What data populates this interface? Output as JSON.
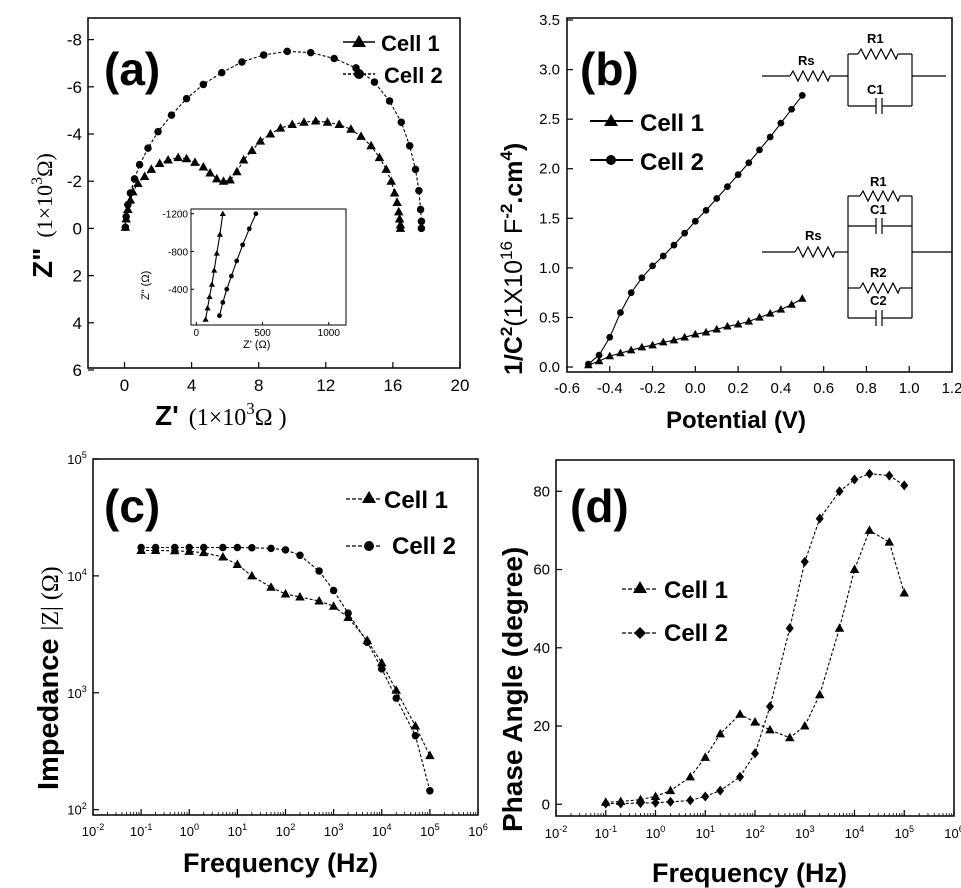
{
  "chart_data": [
    {
      "id": "a",
      "type": "scatter",
      "panel_label": "(a)",
      "xlabel_main": "Z'",
      "xlabel_unit": "(1×10",
      "xlabel_exp": "3",
      "xlabel_end": "Ω )",
      "ylabel_main": "Z\"",
      "ylabel_unit": "(1×10",
      "ylabel_exp": "3",
      "ylabel_end": "Ω)",
      "xlim": [
        0,
        20
      ],
      "ylim": [
        -9,
        6
      ],
      "y_inverted": true,
      "xticks": [
        0,
        4,
        8,
        12,
        16,
        20
      ],
      "xtick_labels": [
        "0",
        "4",
        "8",
        "12",
        "16",
        "20"
      ],
      "yticks": [
        -8,
        -6,
        -4,
        -2,
        0,
        2,
        4,
        6
      ],
      "ytick_labels": [
        "-8",
        "-6",
        "-4",
        "-2",
        "0",
        "2",
        "4",
        "6"
      ],
      "legend_position": "top-right",
      "series": [
        {
          "name": "Cell 1",
          "marker": "triangle",
          "x": [
            0.05,
            0.1,
            0.2,
            0.35,
            0.5,
            0.8,
            1.2,
            1.6,
            2.1,
            2.6,
            3.2,
            3.7,
            4.2,
            4.7,
            5.1,
            5.5,
            5.9,
            6.3,
            6.7,
            7.1,
            7.6,
            8.1,
            8.7,
            9.3,
            10,
            10.7,
            11.4,
            12.1,
            12.8,
            13.5,
            14.1,
            14.7,
            15.2,
            15.6,
            15.9,
            16.1,
            16.25,
            16.35,
            16.4,
            16.45,
            16.45
          ],
          "y": [
            -0.05,
            -0.4,
            -0.8,
            -1.2,
            -1.55,
            -1.9,
            -2.2,
            -2.5,
            -2.75,
            -2.9,
            -3.0,
            -2.95,
            -2.8,
            -2.6,
            -2.35,
            -2.1,
            -2.0,
            -2.05,
            -2.4,
            -2.9,
            -3.3,
            -3.7,
            -4.0,
            -4.25,
            -4.4,
            -4.5,
            -4.55,
            -4.5,
            -4.4,
            -4.2,
            -3.9,
            -3.5,
            -3.0,
            -2.5,
            -2.0,
            -1.5,
            -1.1,
            -0.7,
            -0.4,
            -0.15,
            0.0
          ]
        },
        {
          "name": "Cell 2",
          "marker": "circle",
          "x": [
            0.05,
            0.1,
            0.2,
            0.35,
            0.6,
            0.9,
            1.4,
            2.0,
            2.8,
            3.7,
            4.7,
            5.8,
            7.0,
            8.3,
            9.7,
            11.1,
            12.5,
            13.8,
            14.9,
            15.8,
            16.5,
            17.0,
            17.35,
            17.55,
            17.65,
            17.7,
            17.7
          ],
          "y": [
            -0.05,
            -0.5,
            -1.0,
            -1.5,
            -2.1,
            -2.7,
            -3.4,
            -4.1,
            -4.8,
            -5.5,
            -6.1,
            -6.6,
            -7.05,
            -7.35,
            -7.5,
            -7.45,
            -7.2,
            -6.8,
            -6.2,
            -5.4,
            -4.5,
            -3.5,
            -2.5,
            -1.6,
            -0.8,
            -0.3,
            0.0
          ]
        }
      ],
      "inset": {
        "xlabel": "Z' (Ω)",
        "ylabel": "Z\" (Ω)",
        "xlim": [
          0,
          1200
        ],
        "ylim": [
          -1200,
          0
        ],
        "xticks": [
          0,
          500,
          1000
        ],
        "xtick_labels": [
          "0",
          "500",
          "1000"
        ],
        "yticks": [
          -1200,
          -800,
          -400
        ],
        "ytick_labels": [
          "-1200",
          "-800",
          "-400"
        ],
        "series": [
          {
            "name": "Cell 1",
            "marker": "triangle",
            "x": [
              70,
              85,
              100,
              118,
              135,
              155,
              178,
              200
            ],
            "y": [
              -80,
              -200,
              -320,
              -450,
              -600,
              -780,
              -980,
              -1200
            ]
          },
          {
            "name": "Cell 2",
            "marker": "circle",
            "x": [
              175,
              200,
              230,
              265,
              305,
              350,
              400,
              450
            ],
            "y": [
              -120,
              -260,
              -400,
              -540,
              -700,
              -870,
              -1040,
              -1200
            ]
          }
        ]
      }
    },
    {
      "id": "b",
      "type": "line",
      "panel_label": "(b)",
      "xlabel": "Potential (V)",
      "ylabel_main": "1/C",
      "ylabel_exp1": "2",
      "ylabel_mid": "(1X10",
      "ylabel_exp2": "16",
      "ylabel_mid2": " F",
      "ylabel_exp3": "-2",
      "ylabel_mid3": ".cm",
      "ylabel_exp4": "4",
      "ylabel_end": ")",
      "xlim": [
        -0.6,
        1.2
      ],
      "ylim": [
        -0.05,
        3.5
      ],
      "xticks": [
        -0.6,
        -0.4,
        -0.2,
        0.0,
        0.2,
        0.4,
        0.6,
        0.8,
        1.0,
        1.2
      ],
      "xtick_labels": [
        "-0.6",
        "-0.4",
        "-0.2",
        "0.0",
        "0.2",
        "0.4",
        "0.6",
        "0.8",
        "1.0",
        "1.2"
      ],
      "yticks": [
        0.0,
        0.5,
        1.0,
        1.5,
        2.0,
        2.5,
        3.0,
        3.5
      ],
      "ytick_labels": [
        "0.0",
        "0.5",
        "1.0",
        "1.5",
        "2.0",
        "2.5",
        "3.0",
        "3.5"
      ],
      "legend_position": "top-left",
      "series": [
        {
          "name": "Cell 1",
          "marker": "triangle",
          "x": [
            -0.5,
            -0.45,
            -0.4,
            -0.35,
            -0.3,
            -0.25,
            -0.2,
            -0.15,
            -0.1,
            -0.05,
            0.0,
            0.05,
            0.1,
            0.15,
            0.2,
            0.25,
            0.3,
            0.35,
            0.4,
            0.45,
            0.5
          ],
          "y": [
            0.02,
            0.06,
            0.11,
            0.14,
            0.17,
            0.2,
            0.22,
            0.25,
            0.27,
            0.3,
            0.33,
            0.35,
            0.38,
            0.41,
            0.43,
            0.46,
            0.5,
            0.54,
            0.58,
            0.63,
            0.69
          ]
        },
        {
          "name": "Cell 2",
          "marker": "circle",
          "x": [
            -0.5,
            -0.45,
            -0.4,
            -0.35,
            -0.3,
            -0.25,
            -0.2,
            -0.15,
            -0.1,
            -0.05,
            0.0,
            0.05,
            0.1,
            0.15,
            0.2,
            0.25,
            0.3,
            0.35,
            0.4,
            0.45,
            0.5
          ],
          "y": [
            0.03,
            0.12,
            0.3,
            0.55,
            0.75,
            0.9,
            1.02,
            1.12,
            1.23,
            1.35,
            1.47,
            1.58,
            1.7,
            1.82,
            1.94,
            2.06,
            2.19,
            2.32,
            2.46,
            2.6,
            2.74
          ]
        }
      ],
      "circuit1": {
        "labels": [
          "Rs",
          "R1",
          "C1"
        ]
      },
      "circuit2": {
        "labels": [
          "Rs",
          "R1",
          "C1",
          "R2",
          "C2"
        ]
      }
    },
    {
      "id": "c",
      "type": "line",
      "panel_label": "(c)",
      "xlabel": "Frequency (Hz)",
      "ylabel_main": "Impedance ",
      "ylabel_unit": "|Z| (Ω)",
      "x_scale": "log",
      "y_scale": "log",
      "xlim": [
        0.01,
        1000000
      ],
      "ylim": [
        90,
        100000
      ],
      "xtick_exps": [
        "-2",
        "-1",
        "0",
        "1",
        "2",
        "3",
        "4",
        "5",
        "6"
      ],
      "ytick_exps": [
        "2",
        "3",
        "4",
        "5"
      ],
      "tick_base": "10",
      "legend_position": "top-right",
      "series": [
        {
          "name": "Cell 1",
          "marker": "triangle",
          "x": [
            0.1,
            0.2,
            0.5,
            1,
            2,
            5,
            10,
            20,
            50,
            100,
            200,
            500,
            1000,
            2000,
            5000,
            10000,
            20000,
            50000,
            100000
          ],
          "y": [
            16500,
            16500,
            16400,
            16200,
            15800,
            14500,
            12500,
            10000,
            8000,
            7000,
            6600,
            6100,
            5500,
            4400,
            2800,
            1800,
            1050,
            520,
            290
          ]
        },
        {
          "name": "Cell 2",
          "marker": "circle",
          "x": [
            0.1,
            0.2,
            0.5,
            1,
            2,
            5,
            10,
            20,
            50,
            100,
            200,
            500,
            1000,
            2000,
            5000,
            10000,
            20000,
            50000,
            100000
          ],
          "y": [
            17500,
            17500,
            17500,
            17500,
            17500,
            17500,
            17500,
            17400,
            17200,
            16700,
            15000,
            11000,
            7500,
            4800,
            2700,
            1600,
            900,
            430,
            145
          ]
        }
      ]
    },
    {
      "id": "d",
      "type": "line",
      "panel_label": "(d)",
      "xlabel": "Frequency (Hz)",
      "ylabel": "Phase Angle (degree)",
      "x_scale": "log",
      "xlim": [
        0.01,
        1000000
      ],
      "ylim": [
        -3,
        88
      ],
      "xtick_exps": [
        "-2",
        "-1",
        "0",
        "1",
        "2",
        "3",
        "4",
        "5",
        "6"
      ],
      "tick_base": "10",
      "yticks": [
        0,
        20,
        40,
        60,
        80
      ],
      "ytick_labels": [
        "0",
        "20",
        "40",
        "60",
        "80"
      ],
      "legend_position": "center-left",
      "series": [
        {
          "name": "Cell 1",
          "marker": "triangle",
          "x": [
            0.1,
            0.2,
            0.5,
            1,
            2,
            5,
            10,
            20,
            50,
            100,
            200,
            500,
            1000,
            2000,
            5000,
            10000,
            20000,
            50000,
            100000
          ],
          "y": [
            0.5,
            0.7,
            1.2,
            2,
            3.5,
            7,
            12,
            18,
            23,
            21,
            19,
            17,
            20,
            28,
            45,
            60,
            70,
            67,
            54
          ]
        },
        {
          "name": "Cell 2",
          "marker": "circle",
          "x": [
            0.1,
            0.2,
            0.5,
            1,
            2,
            5,
            10,
            20,
            50,
            100,
            200,
            500,
            1000,
            2000,
            5000,
            10000,
            20000,
            50000,
            100000
          ],
          "y": [
            0.2,
            0.2,
            0.3,
            0.4,
            0.6,
            1,
            2,
            3.5,
            7,
            13,
            25,
            45,
            62,
            73,
            80,
            83,
            84.5,
            84,
            81.5
          ]
        }
      ]
    }
  ]
}
